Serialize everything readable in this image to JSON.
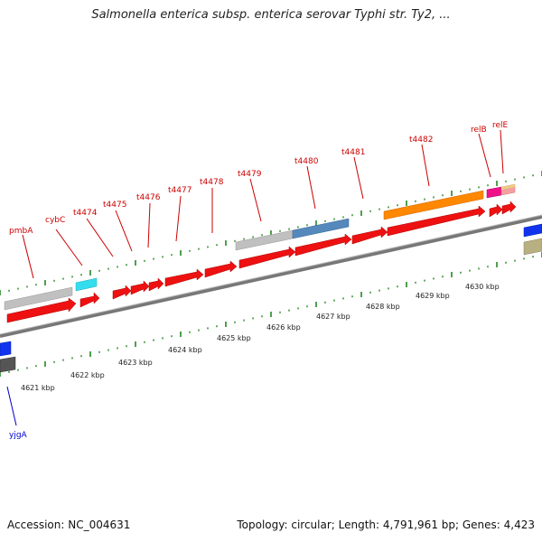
{
  "header": {
    "title": "Salmonella enterica subsp. enterica serovar Typhi str. Ty2, ..."
  },
  "footer": {
    "accession": "Accession: NC_004631",
    "summary": "Topology: circular; Length: 4,791,961 bp; Genes: 4,423"
  },
  "colors": {
    "gene_red": "#ee1111",
    "label_red": "#cc0000",
    "label_blue": "#0000cc",
    "tick_green": "#228822",
    "backbone": "#777777",
    "cog_gray": "#c0c0c0",
    "cog_cyan": "#33ddee",
    "cog_steelblue": "#5588bb",
    "cog_orange": "#ff8800",
    "cog_magenta": "#ee1188",
    "cog_pink": "#f5a0a0",
    "cog_blue": "#1133ee",
    "cog_khaki": "#b8b080",
    "cog_darkgray": "#555555"
  },
  "gene_labels": [
    "pmbA",
    "cybC",
    "t4474",
    "t4475",
    "t4476",
    "t4477",
    "t4478",
    "t4479",
    "t4480",
    "t4481",
    "t4482",
    "relB",
    "relE",
    "yjgA"
  ],
  "scale_labels": [
    "4621 kbp",
    "4622 kbp",
    "4623 kbp",
    "4624 kbp",
    "4625 kbp",
    "4626 kbp",
    "4627 kbp",
    "4628 kbp",
    "4629 kbp",
    "4630 kbp"
  ]
}
